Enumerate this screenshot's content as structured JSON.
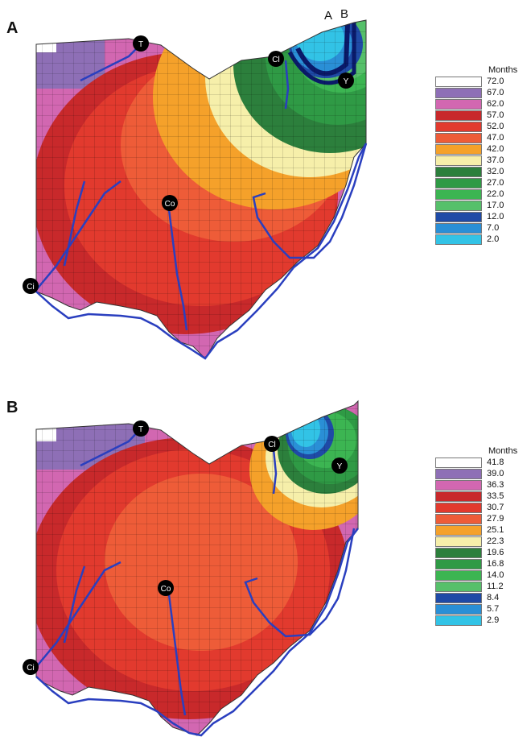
{
  "panels": [
    {
      "letter": "A",
      "cities": {
        "toledo": "T",
        "cleveland": "Cl",
        "youngstown": "Y",
        "columbus": "Co",
        "cincinnati": "Ci"
      },
      "contour_labels": {
        "a": "A",
        "b": "B"
      },
      "legend": {
        "title": "Months",
        "values": [
          "72.0",
          "67.0",
          "62.0",
          "57.0",
          "52.0",
          "47.0",
          "42.0",
          "37.0",
          "32.0",
          "27.0",
          "22.0",
          "17.0",
          "12.0",
          "7.0",
          "2.0"
        ],
        "colors": [
          "#ffffff",
          "#8e6fb6",
          "#d267b1",
          "#c8292b",
          "#e23a2e",
          "#ee5c38",
          "#f5a12a",
          "#f6efaa",
          "#2c7f3c",
          "#2f9a45",
          "#3cb552",
          "#56c06a",
          "#1f4aa6",
          "#2a8fd6",
          "#32c3e6"
        ]
      }
    },
    {
      "letter": "B",
      "cities": {
        "toledo": "T",
        "cleveland": "Cl",
        "youngstown": "Y",
        "columbus": "Co",
        "cincinnati": "Ci"
      },
      "legend": {
        "title": "Months",
        "values": [
          "41.8",
          "39.0",
          "36.3",
          "33.5",
          "30.7",
          "27.9",
          "25.1",
          "22.3",
          "19.6",
          "16.8",
          "14.0",
          "11.2",
          "8.4",
          "5.7",
          "2.9"
        ],
        "colors": [
          "#ffffff",
          "#8e6fb6",
          "#d267b1",
          "#c8292b",
          "#e23a2e",
          "#ee5c38",
          "#f5a12a",
          "#f6efaa",
          "#2c7f3c",
          "#2f9a45",
          "#3cb552",
          "#56c06a",
          "#1f4aa6",
          "#2a8fd6",
          "#32c3e6"
        ]
      }
    }
  ]
}
